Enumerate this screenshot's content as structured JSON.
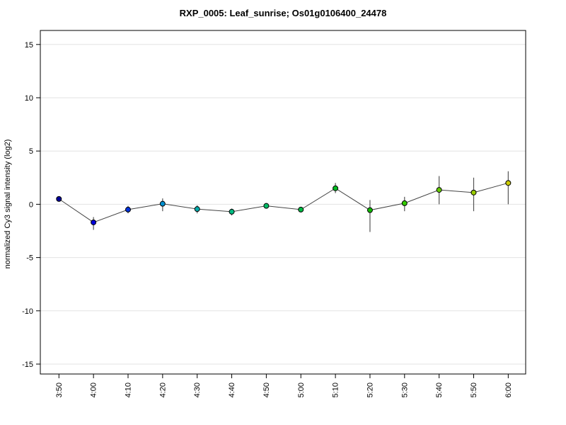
{
  "title": "RXP_0005: Leaf_sunrise; Os01g0106400_24478",
  "chart_data": {
    "type": "line",
    "title": "RXP_0005: Leaf_sunrise; Os01g0106400_24478",
    "xlabel": "",
    "ylabel": "normalized Cy3 signal intensity (log2)",
    "categories": [
      "3:50",
      "4:00",
      "4:10",
      "4:20",
      "4:30",
      "4:40",
      "4:50",
      "5:00",
      "5:10",
      "5:20",
      "5:30",
      "5:40",
      "5:50",
      "6:00"
    ],
    "series": [
      {
        "name": "normalized Cy3 signal intensity",
        "values": [
          0.5,
          -1.7,
          -0.5,
          0.05,
          -0.45,
          -0.7,
          -0.15,
          -0.5,
          1.5,
          -0.55,
          0.1,
          1.35,
          1.1,
          2.0
        ],
        "error_low": [
          0.5,
          -2.4,
          -0.85,
          -0.65,
          -0.85,
          -1.05,
          -0.4,
          -0.75,
          1.05,
          -2.6,
          -0.65,
          0.0,
          -0.65,
          0.0
        ],
        "error_high": [
          0.5,
          -1.2,
          -0.15,
          0.55,
          -0.1,
          -0.4,
          0.1,
          -0.3,
          2.0,
          0.4,
          0.7,
          2.65,
          2.5,
          3.1
        ]
      }
    ],
    "point_colors": [
      "#000099",
      "#0000DD",
      "#0033DD",
      "#0090D0",
      "#00AAAA",
      "#00BB82",
      "#00BB66",
      "#00BB44",
      "#00BB22",
      "#11BB00",
      "#33CC00",
      "#66CC00",
      "#99CC00",
      "#CCCC00"
    ],
    "yticks": [
      -15,
      -10,
      -5,
      0,
      5,
      10,
      15
    ],
    "ylim": [
      -16.3,
      16.3
    ],
    "grid": "horizontal",
    "legend_position": "none",
    "colors": {
      "line": "#444444",
      "error_bar": "#555555",
      "marker_outline": "#000000",
      "gridline": "#e3e3e3",
      "box": "#000000",
      "background": "#ffffff"
    }
  }
}
